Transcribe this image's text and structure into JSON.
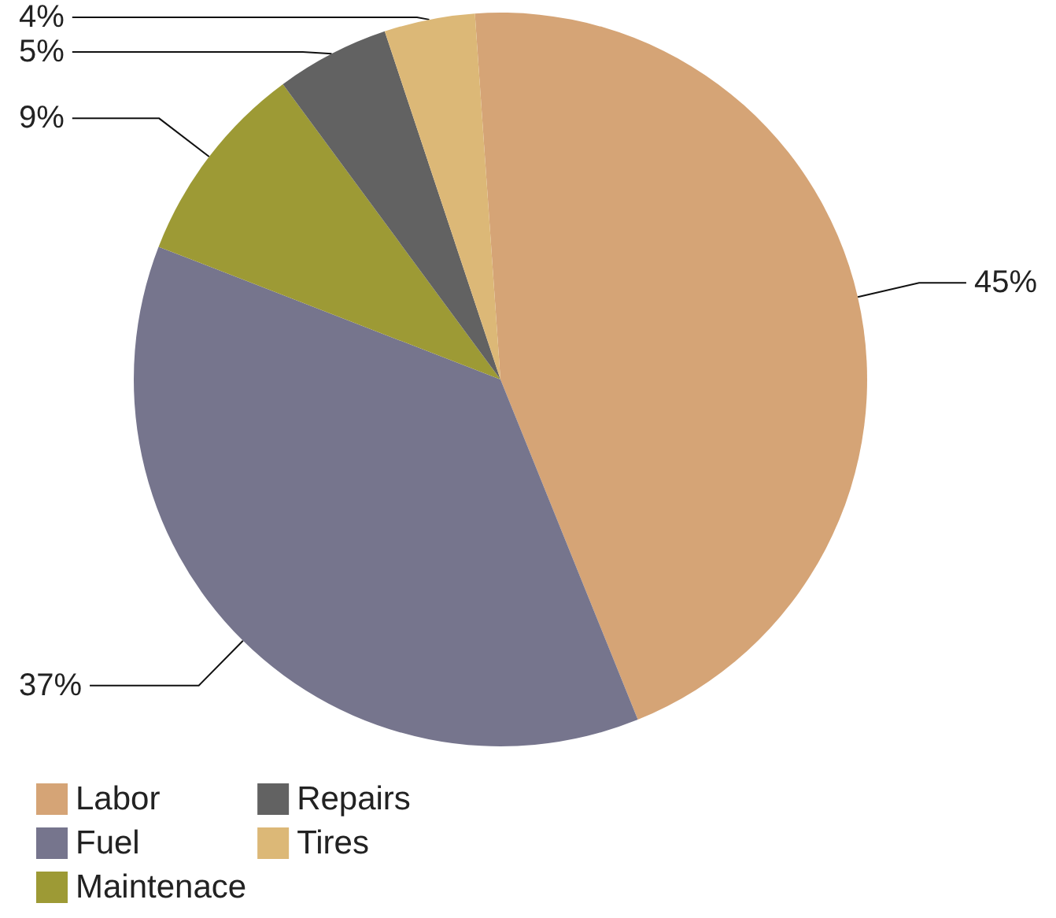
{
  "chart_data": {
    "type": "pie",
    "categories": [
      "Labor",
      "Fuel",
      "Maintenace",
      "Repairs",
      "Tires"
    ],
    "values": [
      45,
      37,
      9,
      5,
      4
    ],
    "value_labels": [
      "45%",
      "37%",
      "9%",
      "5%",
      "4%"
    ],
    "colors": [
      "#d5a476",
      "#76758d",
      "#9d9a35",
      "#626262",
      "#dcb877"
    ],
    "legend": "bottom left"
  }
}
